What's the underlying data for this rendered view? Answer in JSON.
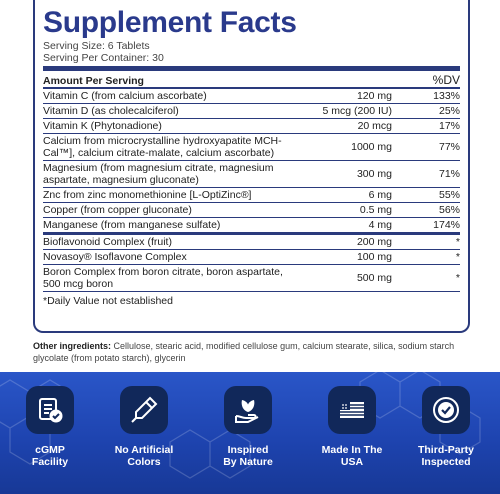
{
  "facts": {
    "title": "Supplement Facts",
    "serving_size": "Serving Size: 6 Tablets",
    "servings_per_container": "Serving Per Container: 30",
    "amount_header": "Amount Per Serving",
    "dv_header": "%DV",
    "rows": [
      {
        "name": "Vitamin C (from calcium ascorbate)",
        "amount": "120 mg",
        "dv": "133%"
      },
      {
        "name": "Vitamin D (as cholecalciferol)",
        "amount": "5 mcg (200 IU)",
        "dv": "25%"
      },
      {
        "name": "Vitamin K (Phytonadione)",
        "amount": "20 mcg",
        "dv": "17%"
      },
      {
        "name": "Calcium from microcrystalline hydroxyapatite MCH-Cal™], calcium citrate-malate, calcium ascorbate)",
        "amount": "1000 mg",
        "dv": "77%"
      },
      {
        "name": "Magnesium (from magnesium citrate, magnesium aspartate, magnesium gluconate)",
        "amount": "300 mg",
        "dv": "71%"
      },
      {
        "name": "Znc from zinc monomethionine [L-OptiZinc®]",
        "amount": "6 mg",
        "dv": "55%"
      },
      {
        "name": "Copper (from copper gluconate)",
        "amount": "0.5 mg",
        "dv": "56%"
      },
      {
        "name": "Manganese (from manganese sulfate)",
        "amount": "4 mg",
        "dv": "174%"
      }
    ],
    "rows2": [
      {
        "name": "Bioflavonoid Complex (fruit)",
        "amount": "200 mg",
        "dv": "*"
      },
      {
        "name": "Novasoy® Isoflavone Complex",
        "amount": "100 mg",
        "dv": "*"
      },
      {
        "name": "Boron Complex from boron citrate, boron aspartate, 500 mcg boron",
        "amount": "500 mg",
        "dv": "*"
      }
    ],
    "footnote": "*Daily Value not established"
  },
  "other": {
    "label": "Other ingredients:",
    "text": " Cellulose, stearic acid, modified cellulose gum, calcium stearate, silica, sodium starch glycolate (from potato starch), glycerin"
  },
  "badges": [
    {
      "label": "cGMP\nFacility",
      "icon": "cgmp-document-check-icon"
    },
    {
      "label": "No Artificial\nColors",
      "icon": "no-color-pen-icon"
    },
    {
      "label": "Inspired\nBy Nature",
      "icon": "leaf-hand-icon"
    },
    {
      "label": "Made In The\nUSA",
      "icon": "us-flag-icon"
    },
    {
      "label": "Third-Party\nInspected",
      "icon": "seal-check-icon"
    }
  ],
  "colors": {
    "brand_navy": "#2a3a8c",
    "banner_blue": "#1e44b0",
    "icon_bg": "#11285a"
  }
}
